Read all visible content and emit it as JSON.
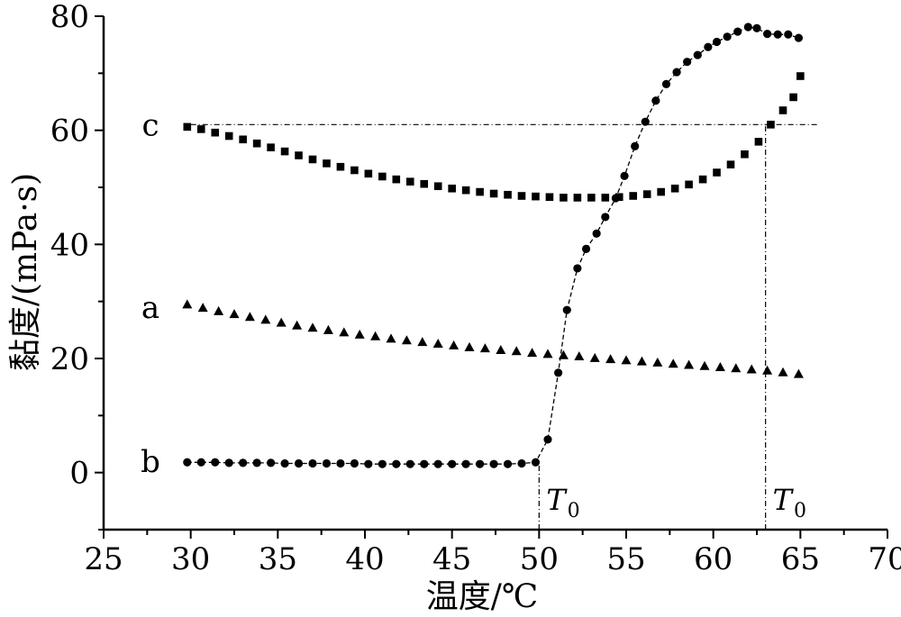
{
  "chart_data": {
    "type": "scatter",
    "xlabel": "温度/℃",
    "ylabel": "黏度/(mPa·s)",
    "xlim": [
      25,
      70
    ],
    "ylim": [
      -10,
      80
    ],
    "xticks": [
      "25",
      "30",
      "35",
      "40",
      "45",
      "50",
      "55",
      "60",
      "65",
      "70"
    ],
    "yticks": [
      "0",
      "20",
      "40",
      "60",
      "80"
    ],
    "xtick_values": [
      25,
      30,
      35,
      40,
      45,
      50,
      55,
      60,
      65,
      70
    ],
    "ytick_values": [
      0,
      20,
      40,
      60,
      80
    ],
    "grid": false,
    "series": [
      {
        "name": "a",
        "marker": "triangle",
        "line": "none",
        "x": [
          29.8,
          30.7,
          31.6,
          32.5,
          33.4,
          34.3,
          35.2,
          36.1,
          37.0,
          37.9,
          38.8,
          39.7,
          40.6,
          41.5,
          42.4,
          43.3,
          44.2,
          45.1,
          46.0,
          46.9,
          47.8,
          48.7,
          49.6,
          50.5,
          51.4,
          52.3,
          53.2,
          54.1,
          55.0,
          55.9,
          56.8,
          57.7,
          58.6,
          59.5,
          60.4,
          61.3,
          62.2,
          63.1,
          64.0,
          64.9
        ],
        "y": [
          29.5,
          28.9,
          28.3,
          27.8,
          27.3,
          26.8,
          26.3,
          25.8,
          25.4,
          25.0,
          24.6,
          24.2,
          23.9,
          23.5,
          23.2,
          22.9,
          22.6,
          22.3,
          22.0,
          21.8,
          21.5,
          21.3,
          21.0,
          20.8,
          20.6,
          20.4,
          20.1,
          19.9,
          19.7,
          19.5,
          19.3,
          19.1,
          18.9,
          18.7,
          18.5,
          18.3,
          18.1,
          17.9,
          17.6,
          17.3
        ]
      },
      {
        "name": "b",
        "marker": "circle",
        "line": "dashed",
        "x": [
          29.8,
          30.6,
          31.4,
          32.2,
          33.0,
          33.8,
          34.6,
          35.4,
          36.2,
          37.0,
          37.8,
          38.6,
          39.4,
          40.2,
          41.0,
          41.8,
          42.6,
          43.4,
          44.2,
          45.0,
          45.8,
          46.6,
          47.4,
          48.2,
          49.0,
          49.8,
          50.5,
          51.1,
          51.6,
          52.2,
          52.7,
          53.3,
          53.8,
          54.4,
          54.9,
          55.5,
          56.1,
          56.7,
          57.3,
          57.9,
          58.5,
          59.1,
          59.7,
          60.2,
          60.8,
          61.4,
          62.0,
          62.5,
          63.1,
          63.7,
          64.3,
          64.9
        ],
        "y": [
          1.8,
          1.8,
          1.8,
          1.7,
          1.7,
          1.7,
          1.7,
          1.6,
          1.6,
          1.6,
          1.6,
          1.6,
          1.6,
          1.5,
          1.5,
          1.5,
          1.5,
          1.5,
          1.5,
          1.5,
          1.5,
          1.5,
          1.5,
          1.5,
          1.6,
          1.8,
          5.8,
          17.5,
          28.5,
          35.8,
          39.2,
          41.9,
          44.8,
          48.1,
          52.0,
          57.2,
          61.5,
          65.2,
          68.1,
          70.2,
          72.0,
          73.2,
          74.6,
          75.5,
          76.4,
          77.3,
          78.1,
          77.9,
          76.9,
          76.8,
          76.8,
          76.2
        ]
      },
      {
        "name": "c",
        "marker": "square",
        "line": "none",
        "x": [
          29.8,
          30.6,
          31.4,
          32.2,
          33.0,
          33.8,
          34.6,
          35.4,
          36.2,
          37.0,
          37.8,
          38.6,
          39.4,
          40.2,
          41.0,
          41.8,
          42.6,
          43.4,
          44.2,
          45.0,
          45.8,
          46.6,
          47.4,
          48.2,
          49.0,
          49.8,
          50.6,
          51.4,
          52.2,
          53.0,
          53.8,
          54.6,
          55.4,
          56.2,
          57.0,
          57.8,
          58.6,
          59.4,
          60.2,
          61.0,
          61.8,
          62.6,
          63.3,
          64.0,
          64.6,
          65.0
        ],
        "y": [
          60.6,
          60.2,
          59.6,
          59.0,
          58.4,
          57.7,
          57.0,
          56.3,
          55.6,
          54.9,
          54.2,
          53.6,
          53.0,
          52.4,
          51.9,
          51.4,
          51.0,
          50.6,
          50.2,
          49.8,
          49.5,
          49.2,
          48.9,
          48.7,
          48.5,
          48.4,
          48.3,
          48.2,
          48.2,
          48.2,
          48.2,
          48.3,
          48.5,
          48.8,
          49.2,
          49.8,
          50.5,
          51.4,
          52.6,
          54.0,
          55.8,
          58.0,
          61.0,
          63.5,
          65.8,
          69.5
        ]
      }
    ],
    "reference_lines": [
      {
        "orientation": "horizontal",
        "y": 61,
        "x_from": 30,
        "x_to": 66
      },
      {
        "orientation": "vertical",
        "x": 50,
        "y_from": -10,
        "y_to": 1.8
      },
      {
        "orientation": "vertical",
        "x": 63,
        "y_from": -10,
        "y_to": 61
      }
    ],
    "annotations": [
      {
        "text": "T",
        "subscript": "0",
        "x": 50,
        "near": "bottom"
      },
      {
        "text": "T",
        "subscript": "0",
        "x": 63,
        "near": "bottom"
      }
    ],
    "series_labels": [
      {
        "text": "c",
        "y": 61
      },
      {
        "text": "a",
        "y": 29
      },
      {
        "text": "b",
        "y": 2
      }
    ]
  }
}
